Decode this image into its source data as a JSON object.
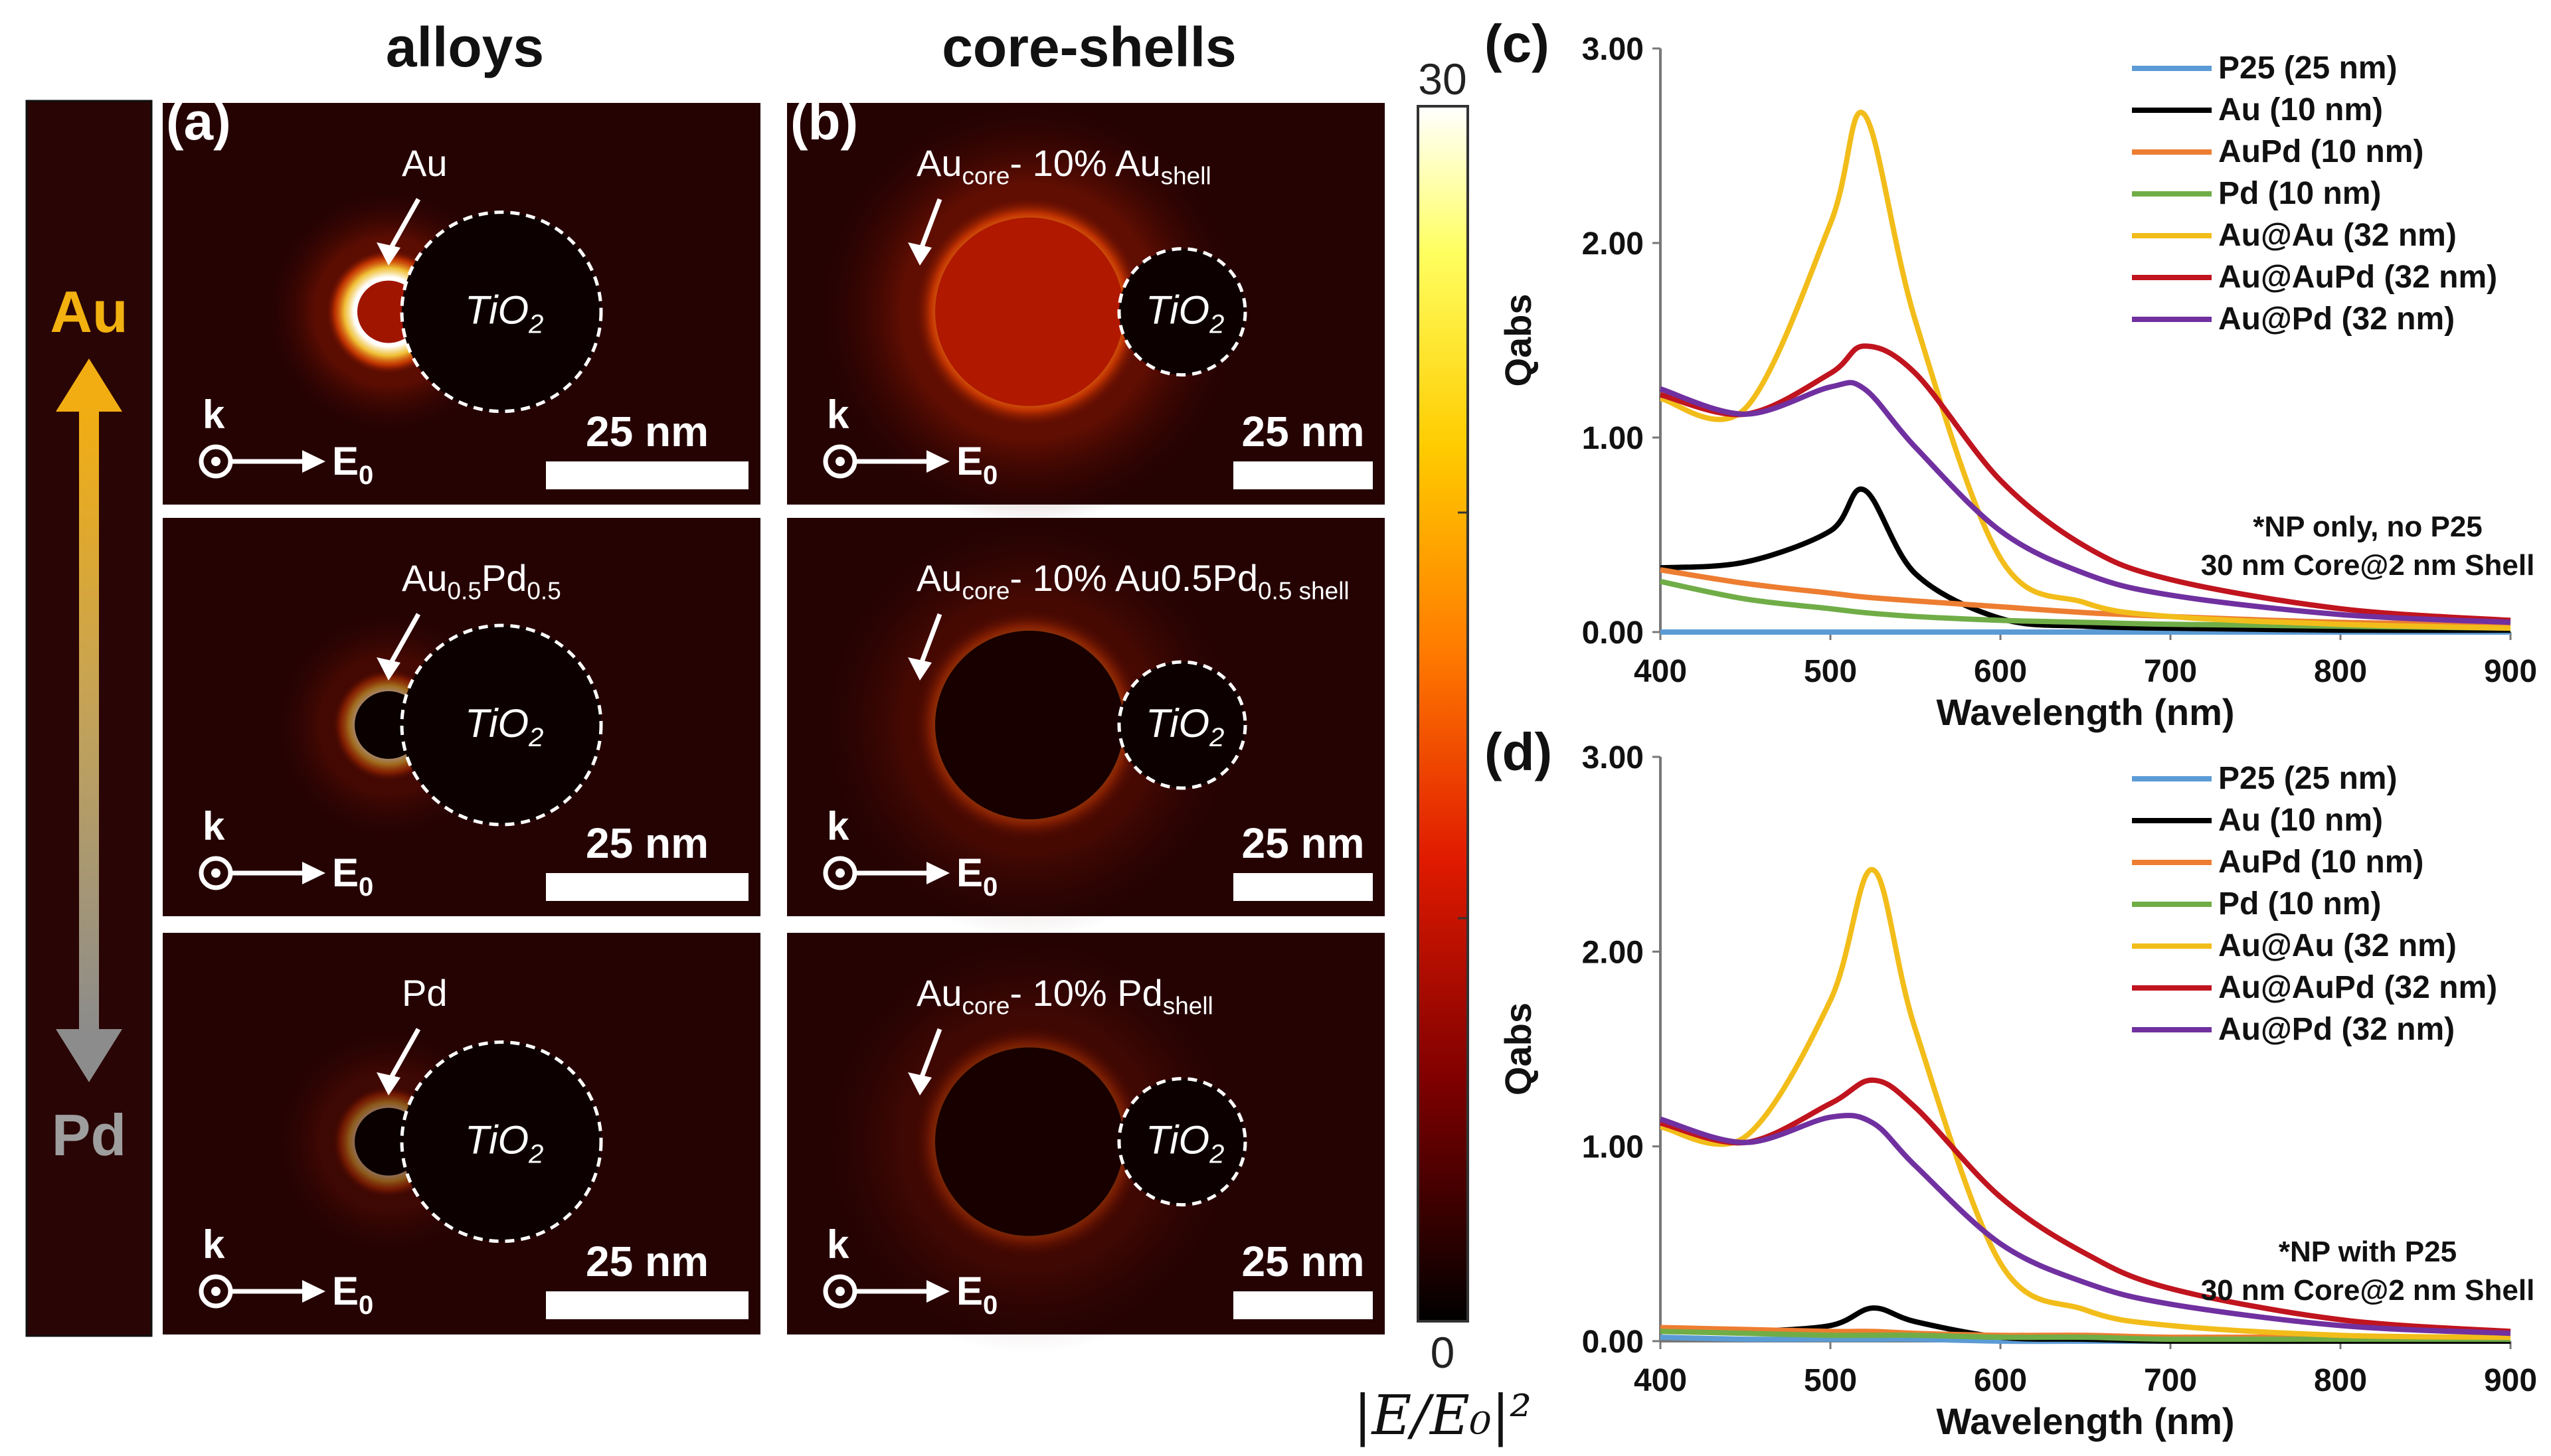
{
  "headers": {
    "alloys": "alloys",
    "core_shells": "core-shells"
  },
  "side_bar": {
    "top_label": "Au",
    "bottom_label": "Pd",
    "top_color": "#f2b10f",
    "bottom_color": "#9e9e9e"
  },
  "panel_labels": {
    "a": "(a)",
    "b": "(b)",
    "c": "(c)",
    "d": "(d)"
  },
  "field_panels": [
    {
      "annotation_main": "Au",
      "annotation_sub": "",
      "annotation_tail": "",
      "annotation_tail_sub": ""
    },
    {
      "annotation_main": "Au",
      "annotation_sub": "core",
      "annotation_tail": "- 10% Au",
      "annotation_tail_sub": "shell"
    },
    {
      "annotation_main": "Au",
      "annotation_sub": "0.5",
      "annotation_tail": "Pd",
      "annotation_tail_sub": "0.5"
    },
    {
      "annotation_main": "Au",
      "annotation_sub": "core",
      "annotation_tail": "- 10% Au0.5Pd",
      "annotation_tail_sub": "0.5 shell"
    },
    {
      "annotation_main": "Pd",
      "annotation_sub": "",
      "annotation_tail": "",
      "annotation_tail_sub": ""
    },
    {
      "annotation_main": "Au",
      "annotation_sub": "core",
      "annotation_tail": "- 10% Pd",
      "annotation_tail_sub": "shell"
    }
  ],
  "tio2_main": "TiO",
  "tio2_sub": "2",
  "scale_bar_label": "25 nm",
  "k_label": "k",
  "e0_main": "E",
  "e0_sub": "0",
  "colorbar": {
    "max_label": "30",
    "min_label": "0",
    "title": "|E/E₀|²"
  },
  "chart_data": [
    {
      "type": "line",
      "panel": "(c)",
      "xlabel": "Wavelength (nm)",
      "ylabel": "Qabs",
      "xlim": [
        400,
        900
      ],
      "ylim": [
        0,
        3
      ],
      "xticks": [
        "400",
        "500",
        "600",
        "700",
        "800",
        "900"
      ],
      "yticks": [
        "0.00",
        "1.00",
        "2.00",
        "3.00"
      ],
      "note_line1": "*NP only, no P25",
      "note_line2": "30 nm Core@2 nm Shell",
      "x": [
        400,
        450,
        500,
        520,
        550,
        600,
        650,
        700,
        800,
        900
      ],
      "series": [
        {
          "name": "P25 (25 nm)",
          "color": "#5b9bd5",
          "values": [
            0,
            0,
            0,
            0,
            0,
            0,
            0,
            0,
            0,
            0
          ]
        },
        {
          "name": "Au (10 nm)",
          "color": "#000000",
          "values": [
            0.33,
            0.36,
            0.52,
            0.73,
            0.3,
            0.07,
            0.03,
            0.02,
            0.01,
            0.01
          ]
        },
        {
          "name": "AuPd (10 nm)",
          "color": "#ed7d31",
          "values": [
            0.32,
            0.25,
            0.2,
            0.18,
            0.16,
            0.13,
            0.1,
            0.08,
            0.05,
            0.04
          ]
        },
        {
          "name": "Pd (10 nm)",
          "color": "#70ad47",
          "values": [
            0.26,
            0.17,
            0.12,
            0.1,
            0.08,
            0.06,
            0.05,
            0.04,
            0.03,
            0.02
          ]
        },
        {
          "name": "Au@Au (32 nm)",
          "color": "#f2bd1a",
          "values": [
            1.2,
            1.15,
            2.1,
            2.66,
            1.6,
            0.38,
            0.15,
            0.08,
            0.04,
            0.02
          ]
        },
        {
          "name": "Au@AuPd (32 nm)",
          "color": "#c0141e",
          "values": [
            1.22,
            1.12,
            1.33,
            1.47,
            1.33,
            0.78,
            0.44,
            0.27,
            0.12,
            0.06
          ]
        },
        {
          "name": "Au@Pd (32 nm)",
          "color": "#7030a0",
          "values": [
            1.25,
            1.12,
            1.26,
            1.25,
            0.95,
            0.52,
            0.3,
            0.19,
            0.09,
            0.05
          ]
        }
      ]
    },
    {
      "type": "line",
      "panel": "(d)",
      "xlabel": "Wavelength (nm)",
      "ylabel": "Qabs",
      "xlim": [
        400,
        900
      ],
      "ylim": [
        0,
        3
      ],
      "xticks": [
        "400",
        "500",
        "600",
        "700",
        "800",
        "900"
      ],
      "yticks": [
        "0.00",
        "1.00",
        "2.00",
        "3.00"
      ],
      "note_line1": "*NP with P25",
      "note_line2": "30 nm Core@2 nm Shell",
      "x": [
        400,
        450,
        500,
        525,
        550,
        600,
        650,
        700,
        800,
        900
      ],
      "series": [
        {
          "name": "P25 (25 nm)",
          "color": "#5b9bd5",
          "values": [
            0.02,
            0.01,
            0.01,
            0.01,
            0.01,
            0.0,
            0.0,
            0.0,
            0.0,
            0.0
          ]
        },
        {
          "name": "Au (10 nm)",
          "color": "#000000",
          "values": [
            0.05,
            0.05,
            0.08,
            0.17,
            0.1,
            0.02,
            0.01,
            0.0,
            0.0,
            0.0
          ]
        },
        {
          "name": "AuPd (10 nm)",
          "color": "#ed7d31",
          "values": [
            0.07,
            0.06,
            0.05,
            0.05,
            0.04,
            0.03,
            0.03,
            0.02,
            0.02,
            0.01
          ]
        },
        {
          "name": "Pd (10 nm)",
          "color": "#70ad47",
          "values": [
            0.05,
            0.04,
            0.03,
            0.03,
            0.03,
            0.02,
            0.02,
            0.01,
            0.01,
            0.01
          ]
        },
        {
          "name": "Au@Au (32 nm)",
          "color": "#f2bd1a",
          "values": [
            1.1,
            1.05,
            1.75,
            2.42,
            1.6,
            0.4,
            0.16,
            0.08,
            0.03,
            0.02
          ]
        },
        {
          "name": "Au@AuPd (32 nm)",
          "color": "#c0141e",
          "values": [
            1.12,
            1.02,
            1.22,
            1.34,
            1.2,
            0.74,
            0.45,
            0.27,
            0.11,
            0.05
          ]
        },
        {
          "name": "Au@Pd (32 nm)",
          "color": "#7030a0",
          "values": [
            1.14,
            1.02,
            1.15,
            1.12,
            0.9,
            0.5,
            0.3,
            0.19,
            0.08,
            0.04
          ]
        }
      ]
    }
  ]
}
